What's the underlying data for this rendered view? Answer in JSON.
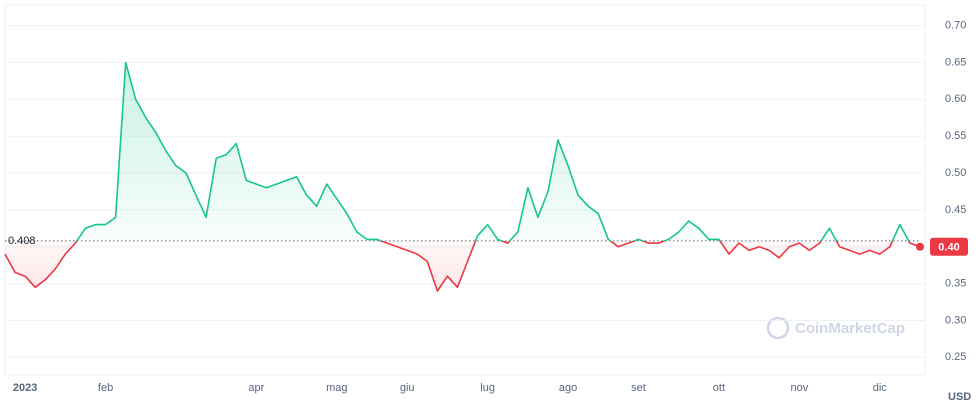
{
  "chart_data": {
    "type": "line",
    "categories": [
      null,
      null,
      "2023",
      null,
      null,
      null,
      null,
      null,
      null,
      null,
      "feb",
      null,
      null,
      null,
      null,
      null,
      null,
      null,
      null,
      null,
      null,
      null,
      null,
      null,
      null,
      "apr",
      null,
      null,
      null,
      null,
      null,
      null,
      null,
      "mag",
      null,
      null,
      null,
      null,
      null,
      null,
      "giu",
      null,
      null,
      null,
      null,
      null,
      null,
      null,
      "lug",
      null,
      null,
      null,
      null,
      null,
      null,
      null,
      "ago",
      null,
      null,
      null,
      null,
      null,
      null,
      "set",
      null,
      null,
      null,
      null,
      null,
      null,
      null,
      "ott",
      null,
      null,
      null,
      null,
      null,
      null,
      null,
      "nov",
      null,
      null,
      null,
      null,
      null,
      null,
      null,
      "dic",
      null,
      null,
      null,
      null
    ],
    "series": [
      {
        "name": "USD",
        "values": [
          0.39,
          0.365,
          0.36,
          0.345,
          0.355,
          0.37,
          0.39,
          0.405,
          0.425,
          0.43,
          0.43,
          0.44,
          0.65,
          0.6,
          0.575,
          0.555,
          0.53,
          0.51,
          0.5,
          0.47,
          0.44,
          0.52,
          0.525,
          0.54,
          0.49,
          0.485,
          0.48,
          0.485,
          0.49,
          0.495,
          0.47,
          0.455,
          0.485,
          0.465,
          0.445,
          0.42,
          0.41,
          0.41,
          0.405,
          0.4,
          0.395,
          0.39,
          0.38,
          0.34,
          0.36,
          0.345,
          0.38,
          0.415,
          0.43,
          0.41,
          0.405,
          0.42,
          0.48,
          0.44,
          0.475,
          0.545,
          0.51,
          0.47,
          0.455,
          0.445,
          0.41,
          0.4,
          0.405,
          0.41,
          0.405,
          0.405,
          0.41,
          0.42,
          0.435,
          0.425,
          0.41,
          0.41,
          0.39,
          0.405,
          0.395,
          0.4,
          0.395,
          0.385,
          0.4,
          0.405,
          0.395,
          0.405,
          0.425,
          0.4,
          0.395,
          0.39,
          0.395,
          0.39,
          0.4,
          0.43,
          0.405,
          0.4
        ]
      }
    ],
    "up_color": "#16c784",
    "down_color": "#ea3943",
    "reference": {
      "value": 0.408,
      "label": "0.408"
    },
    "last_label": "0.40",
    "ylim": [
      0.226,
      0.728
    ],
    "yticks": [
      {
        "value": 0.25,
        "label": "0.25"
      },
      {
        "value": 0.3,
        "label": "0.30"
      },
      {
        "value": 0.35,
        "label": "0.35"
      },
      {
        "value": 0.4,
        "label": "0.40"
      },
      {
        "value": 0.45,
        "label": "0.45"
      },
      {
        "value": 0.5,
        "label": "0.50"
      },
      {
        "value": 0.55,
        "label": "0.55"
      },
      {
        "value": 0.6,
        "label": "0.60"
      },
      {
        "value": 0.65,
        "label": "0.65"
      },
      {
        "value": 0.7,
        "label": "0.70"
      }
    ],
    "y_unit": "USD",
    "watermark": "CoinMarketCap",
    "grid": true
  }
}
